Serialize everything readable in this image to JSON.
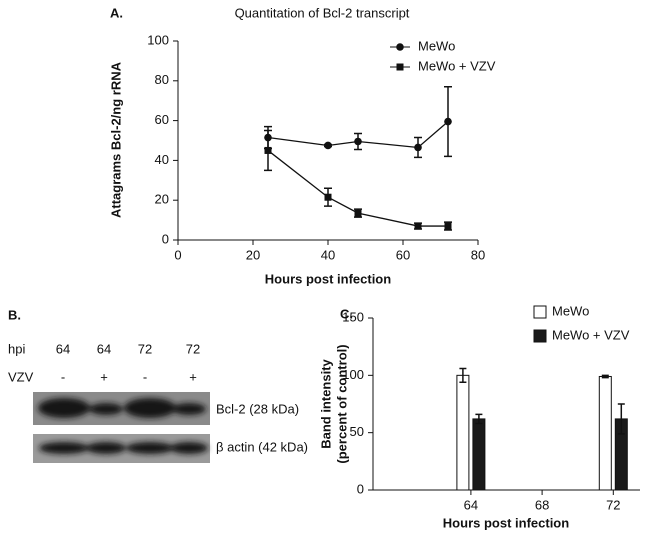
{
  "chart_data": [
    {
      "type": "line",
      "panel_label": "A.",
      "title": "Quantitation of Bcl-2 transcript",
      "xlabel": "Hours post infection",
      "ylabel": "Attagrams Bcl-2/ng rRNA",
      "xlim": [
        0,
        80
      ],
      "xticks": [
        0,
        20,
        40,
        60,
        80
      ],
      "ylim": [
        0,
        100
      ],
      "yticks": [
        0,
        20,
        40,
        60,
        80,
        100
      ],
      "x": [
        24,
        40,
        48,
        64,
        72
      ],
      "legend": "upper right",
      "series": [
        {
          "name": "MeWo",
          "color": "#111111",
          "marker": "circle",
          "values": [
            51.5,
            47.5,
            49.5,
            46.5,
            59.5
          ],
          "errors": [
            5.5,
            0.5,
            4,
            5,
            17.5
          ]
        },
        {
          "name": "MeWo + VZV",
          "color": "#111111",
          "marker": "square",
          "values": [
            45,
            21.5,
            13.5,
            7,
            7
          ],
          "errors": [
            10,
            4.5,
            2,
            1.5,
            2
          ]
        }
      ]
    },
    {
      "type": "bar",
      "panel_label": "C.",
      "xlabel": "Hours post infection",
      "ylabel": [
        "Band intensity",
        "(percent of control)"
      ],
      "xlim": [
        58.5,
        73.5
      ],
      "x": [
        64,
        68,
        72
      ],
      "xticks": [
        64,
        68,
        72
      ],
      "ylim": [
        0,
        150
      ],
      "yticks": [
        0,
        50,
        100,
        150
      ],
      "legend": "upper right",
      "series": [
        {
          "name": "MeWo",
          "color": "#ffffff",
          "values": [
            100,
            null,
            99
          ],
          "errors": [
            6,
            null,
            1
          ]
        },
        {
          "name": "MeWo + VZV",
          "color": "#1a1a1a",
          "values": [
            62,
            null,
            62
          ],
          "errors": [
            4,
            null,
            13
          ]
        }
      ]
    }
  ],
  "blot": {
    "panel_label": "B.",
    "hpi_label": "hpi",
    "hpi": [
      "64",
      "64",
      "72",
      "72"
    ],
    "vzv_label": "VZV",
    "vzv": [
      "-",
      "+",
      "-",
      "+"
    ],
    "bands": [
      "Bcl-2  (28 kDa)",
      "β actin  (42 kDa)"
    ]
  }
}
